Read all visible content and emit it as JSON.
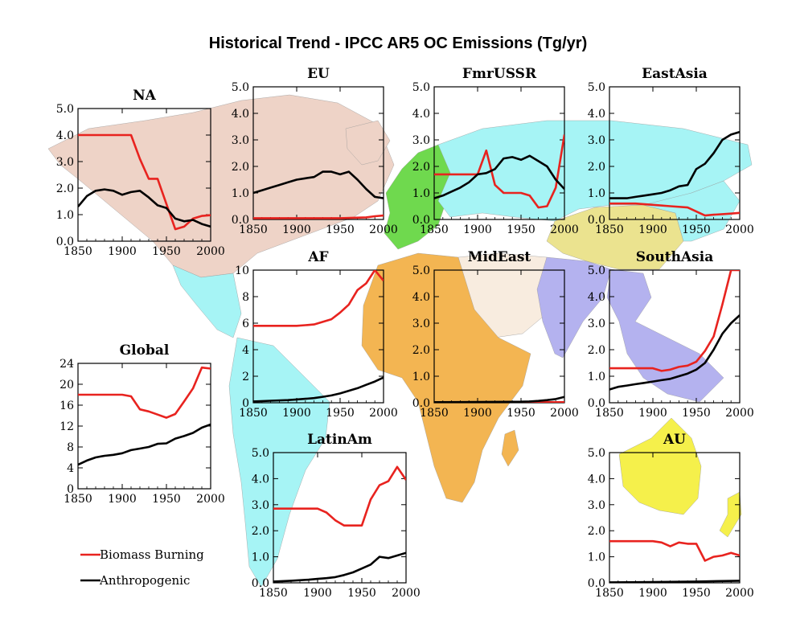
{
  "title": "Historical Trend - IPCC AR5 OC Emissions (Tg/yr)",
  "colors": {
    "biomass": "#e8231f",
    "anthropogenic": "#000000",
    "NA": "#eed3c7",
    "EU": "#6fd94e",
    "FmrUSSR": "#a6f4f5",
    "EastAsia": "#a6f4f5",
    "AF": "#f3b552",
    "MidEast": "#f8ecdf",
    "SouthAsia": "#b4b2ef",
    "SEAsia": "#b4b2ef",
    "CentralAsia": "#ebe38f",
    "LatinAm": "#a6f4f5",
    "AU": "#f5f04b"
  },
  "legend": {
    "biomass": "Biomass Burning",
    "anthropogenic": "Anthropogenic"
  },
  "chart_data": [
    {
      "type": "line",
      "id": "NA",
      "title": "NA",
      "xlim": [
        1850,
        2000
      ],
      "xticks": [
        1850,
        1900,
        1950,
        2000
      ],
      "ylim": [
        0,
        5
      ],
      "yticks": [
        "0.0",
        "1.0",
        "2.0",
        "3.0",
        "4.0",
        "5.0"
      ],
      "series": [
        {
          "name": "Biomass Burning",
          "x": [
            1850,
            1900,
            1910,
            1920,
            1930,
            1940,
            1950,
            1960,
            1970,
            1980,
            1990,
            2000
          ],
          "y": [
            4.0,
            4.0,
            4.0,
            3.1,
            2.35,
            2.35,
            1.4,
            0.45,
            0.55,
            0.85,
            0.95,
            0.98
          ]
        },
        {
          "name": "Anthropogenic",
          "x": [
            1850,
            1860,
            1870,
            1880,
            1890,
            1900,
            1910,
            1920,
            1930,
            1940,
            1950,
            1960,
            1970,
            1980,
            1990,
            2000
          ],
          "y": [
            1.3,
            1.7,
            1.9,
            1.95,
            1.9,
            1.75,
            1.85,
            1.9,
            1.65,
            1.35,
            1.25,
            0.85,
            0.75,
            0.8,
            0.65,
            0.55
          ]
        }
      ]
    },
    {
      "type": "line",
      "id": "EU",
      "title": "EU",
      "xlim": [
        1850,
        2000
      ],
      "xticks": [
        1850,
        1900,
        1950,
        2000
      ],
      "ylim": [
        0,
        5
      ],
      "yticks": [
        "0.0",
        "1.0",
        "2.0",
        "3.0",
        "4.0",
        "5.0"
      ],
      "series": [
        {
          "name": "Biomass Burning",
          "x": [
            1850,
            1900,
            1950,
            1980,
            1990,
            2000
          ],
          "y": [
            0.05,
            0.05,
            0.05,
            0.08,
            0.12,
            0.15
          ]
        },
        {
          "name": "Anthropogenic",
          "x": [
            1850,
            1860,
            1870,
            1880,
            1890,
            1900,
            1910,
            1920,
            1930,
            1940,
            1950,
            1960,
            1970,
            1980,
            1990,
            2000
          ],
          "y": [
            1.0,
            1.1,
            1.2,
            1.3,
            1.4,
            1.5,
            1.55,
            1.6,
            1.8,
            1.8,
            1.7,
            1.8,
            1.5,
            1.15,
            0.85,
            0.8
          ]
        }
      ]
    },
    {
      "type": "line",
      "id": "FmrUSSR",
      "title": "FmrUSSR",
      "xlim": [
        1850,
        2000
      ],
      "xticks": [
        1850,
        1900,
        1950,
        2000
      ],
      "ylim": [
        0,
        5
      ],
      "yticks": [
        "0.0",
        "1.0",
        "2.0",
        "3.0",
        "4.0",
        "5.0"
      ],
      "series": [
        {
          "name": "Biomass Burning",
          "x": [
            1850,
            1900,
            1910,
            1920,
            1930,
            1940,
            1950,
            1960,
            1970,
            1980,
            1990,
            2000
          ],
          "y": [
            1.7,
            1.7,
            2.6,
            1.3,
            1.0,
            1.0,
            1.0,
            0.9,
            0.45,
            0.5,
            1.2,
            3.2
          ]
        },
        {
          "name": "Anthropogenic",
          "x": [
            1850,
            1860,
            1870,
            1880,
            1890,
            1900,
            1910,
            1920,
            1930,
            1940,
            1950,
            1960,
            1970,
            1980,
            1990,
            2000
          ],
          "y": [
            0.8,
            0.9,
            1.05,
            1.2,
            1.4,
            1.7,
            1.75,
            1.9,
            2.3,
            2.35,
            2.25,
            2.4,
            2.2,
            2.0,
            1.5,
            1.15
          ]
        }
      ]
    },
    {
      "type": "line",
      "id": "EastAsia",
      "title": "EastAsia",
      "xlim": [
        1850,
        2000
      ],
      "xticks": [
        1850,
        1900,
        1950,
        2000
      ],
      "ylim": [
        0,
        5
      ],
      "yticks": [
        "0.0",
        "1.0",
        "2.0",
        "3.0",
        "4.0",
        "5.0"
      ],
      "series": [
        {
          "name": "Biomass Burning",
          "x": [
            1850,
            1880,
            1900,
            1920,
            1940,
            1950,
            1960,
            1970,
            1980,
            1990,
            2000
          ],
          "y": [
            0.6,
            0.6,
            0.55,
            0.5,
            0.45,
            0.3,
            0.15,
            0.18,
            0.2,
            0.22,
            0.25
          ]
        },
        {
          "name": "Anthropogenic",
          "x": [
            1850,
            1860,
            1870,
            1880,
            1890,
            1900,
            1910,
            1920,
            1930,
            1940,
            1950,
            1960,
            1970,
            1980,
            1990,
            2000
          ],
          "y": [
            0.8,
            0.8,
            0.8,
            0.85,
            0.9,
            0.95,
            1.0,
            1.1,
            1.25,
            1.3,
            1.9,
            2.1,
            2.5,
            3.0,
            3.2,
            3.3
          ]
        }
      ]
    },
    {
      "type": "line",
      "id": "AF",
      "title": "AF",
      "xlim": [
        1850,
        2000
      ],
      "xticks": [
        1850,
        1900,
        1950,
        2000
      ],
      "ylim": [
        0,
        10
      ],
      "yticks": [
        "0",
        "2",
        "4",
        "6",
        "8",
        "10"
      ],
      "series": [
        {
          "name": "Biomass Burning",
          "x": [
            1850,
            1870,
            1890,
            1900,
            1910,
            1920,
            1930,
            1940,
            1950,
            1960,
            1970,
            1980,
            1990,
            2000
          ],
          "y": [
            5.8,
            5.8,
            5.8,
            5.8,
            5.85,
            5.9,
            6.1,
            6.3,
            6.8,
            7.4,
            8.5,
            9.0,
            10.0,
            9.2
          ]
        },
        {
          "name": "Anthropogenic",
          "x": [
            1850,
            1870,
            1890,
            1900,
            1910,
            1920,
            1930,
            1940,
            1950,
            1960,
            1970,
            1980,
            1990,
            2000
          ],
          "y": [
            0.1,
            0.15,
            0.2,
            0.25,
            0.3,
            0.35,
            0.45,
            0.55,
            0.7,
            0.9,
            1.1,
            1.35,
            1.6,
            1.9
          ]
        }
      ]
    },
    {
      "type": "line",
      "id": "MidEast",
      "title": "MidEast",
      "xlim": [
        1850,
        2000
      ],
      "xticks": [
        1850,
        1900,
        1950,
        2000
      ],
      "ylim": [
        0,
        5
      ],
      "yticks": [
        "0.0",
        "1.0",
        "2.0",
        "3.0",
        "4.0",
        "5.0"
      ],
      "series": [
        {
          "name": "Biomass Burning",
          "x": [
            1850,
            1900,
            1950,
            2000
          ],
          "y": [
            0.02,
            0.02,
            0.02,
            0.02
          ]
        },
        {
          "name": "Anthropogenic",
          "x": [
            1850,
            1900,
            1950,
            1960,
            1970,
            1980,
            1990,
            2000
          ],
          "y": [
            0.02,
            0.03,
            0.04,
            0.05,
            0.07,
            0.1,
            0.14,
            0.22
          ]
        }
      ]
    },
    {
      "type": "line",
      "id": "SouthAsia",
      "title": "SouthAsia",
      "xlim": [
        1850,
        2000
      ],
      "xticks": [
        1850,
        1900,
        1950,
        2000
      ],
      "ylim": [
        0,
        5
      ],
      "yticks": [
        "0.0",
        "1.0",
        "2.0",
        "3.0",
        "4.0",
        "5.0"
      ],
      "series": [
        {
          "name": "Biomass Burning",
          "x": [
            1850,
            1890,
            1900,
            1910,
            1920,
            1930,
            1940,
            1950,
            1960,
            1970,
            1980,
            1990,
            2000
          ],
          "y": [
            1.3,
            1.3,
            1.3,
            1.2,
            1.25,
            1.35,
            1.4,
            1.55,
            1.95,
            2.5,
            3.7,
            5.0,
            5.0
          ]
        },
        {
          "name": "Anthropogenic",
          "x": [
            1850,
            1860,
            1870,
            1880,
            1890,
            1900,
            1910,
            1920,
            1930,
            1940,
            1950,
            1960,
            1970,
            1980,
            1990,
            2000
          ],
          "y": [
            0.5,
            0.6,
            0.65,
            0.7,
            0.75,
            0.8,
            0.85,
            0.9,
            1.0,
            1.1,
            1.25,
            1.5,
            2.0,
            2.6,
            3.0,
            3.3
          ]
        }
      ]
    },
    {
      "type": "line",
      "id": "Global",
      "title": "Global",
      "xlim": [
        1850,
        2000
      ],
      "xticks": [
        1850,
        1900,
        1950,
        2000
      ],
      "ylim": [
        0,
        24
      ],
      "yticks": [
        "0",
        "4",
        "8",
        "12",
        "16",
        "20",
        "24"
      ],
      "series": [
        {
          "name": "Biomass Burning",
          "x": [
            1850,
            1870,
            1890,
            1900,
            1910,
            1920,
            1930,
            1940,
            1950,
            1960,
            1970,
            1980,
            1990,
            2000
          ],
          "y": [
            18,
            18,
            18,
            18,
            17.7,
            15.2,
            14.8,
            14.2,
            13.6,
            14.3,
            16.7,
            19.2,
            23.2,
            23.0
          ]
        },
        {
          "name": "Anthropogenic",
          "x": [
            1850,
            1860,
            1870,
            1880,
            1890,
            1900,
            1910,
            1920,
            1930,
            1940,
            1950,
            1960,
            1970,
            1980,
            1990,
            2000
          ],
          "y": [
            4.6,
            5.4,
            6.0,
            6.3,
            6.5,
            6.8,
            7.4,
            7.7,
            8.0,
            8.6,
            8.7,
            9.6,
            10.1,
            10.7,
            11.7,
            12.3
          ]
        }
      ]
    },
    {
      "type": "line",
      "id": "LatinAm",
      "title": "LatinAm",
      "xlim": [
        1850,
        2000
      ],
      "xticks": [
        1850,
        1900,
        1950,
        2000
      ],
      "ylim": [
        0,
        5
      ],
      "yticks": [
        "0.0",
        "1.0",
        "2.0",
        "3.0",
        "4.0",
        "5.0"
      ],
      "series": [
        {
          "name": "Biomass Burning",
          "x": [
            1850,
            1870,
            1890,
            1900,
            1910,
            1920,
            1930,
            1940,
            1950,
            1960,
            1970,
            1980,
            1990,
            2000
          ],
          "y": [
            2.85,
            2.85,
            2.85,
            2.85,
            2.7,
            2.4,
            2.2,
            2.2,
            2.2,
            3.2,
            3.75,
            3.9,
            4.45,
            3.95
          ]
        },
        {
          "name": "Anthropogenic",
          "x": [
            1850,
            1870,
            1890,
            1900,
            1910,
            1920,
            1930,
            1940,
            1950,
            1960,
            1970,
            1980,
            1990,
            2000
          ],
          "y": [
            0.05,
            0.08,
            0.12,
            0.15,
            0.18,
            0.22,
            0.3,
            0.4,
            0.55,
            0.7,
            1.0,
            0.95,
            1.05,
            1.15
          ]
        }
      ]
    },
    {
      "type": "line",
      "id": "AU",
      "title": "AU",
      "xlim": [
        1850,
        2000
      ],
      "xticks": [
        1850,
        1900,
        1950,
        2000
      ],
      "ylim": [
        0,
        5
      ],
      "yticks": [
        "0.0",
        "1.0",
        "2.0",
        "3.0",
        "4.0",
        "5.0"
      ],
      "series": [
        {
          "name": "Biomass Burning",
          "x": [
            1850,
            1870,
            1890,
            1900,
            1910,
            1920,
            1930,
            1940,
            1950,
            1960,
            1970,
            1980,
            1990,
            2000
          ],
          "y": [
            1.6,
            1.6,
            1.6,
            1.6,
            1.55,
            1.4,
            1.55,
            1.5,
            1.5,
            0.85,
            1.0,
            1.05,
            1.15,
            1.05
          ]
        },
        {
          "name": "Anthropogenic",
          "x": [
            1850,
            1900,
            1950,
            2000
          ],
          "y": [
            0.02,
            0.03,
            0.05,
            0.08
          ]
        }
      ]
    }
  ]
}
